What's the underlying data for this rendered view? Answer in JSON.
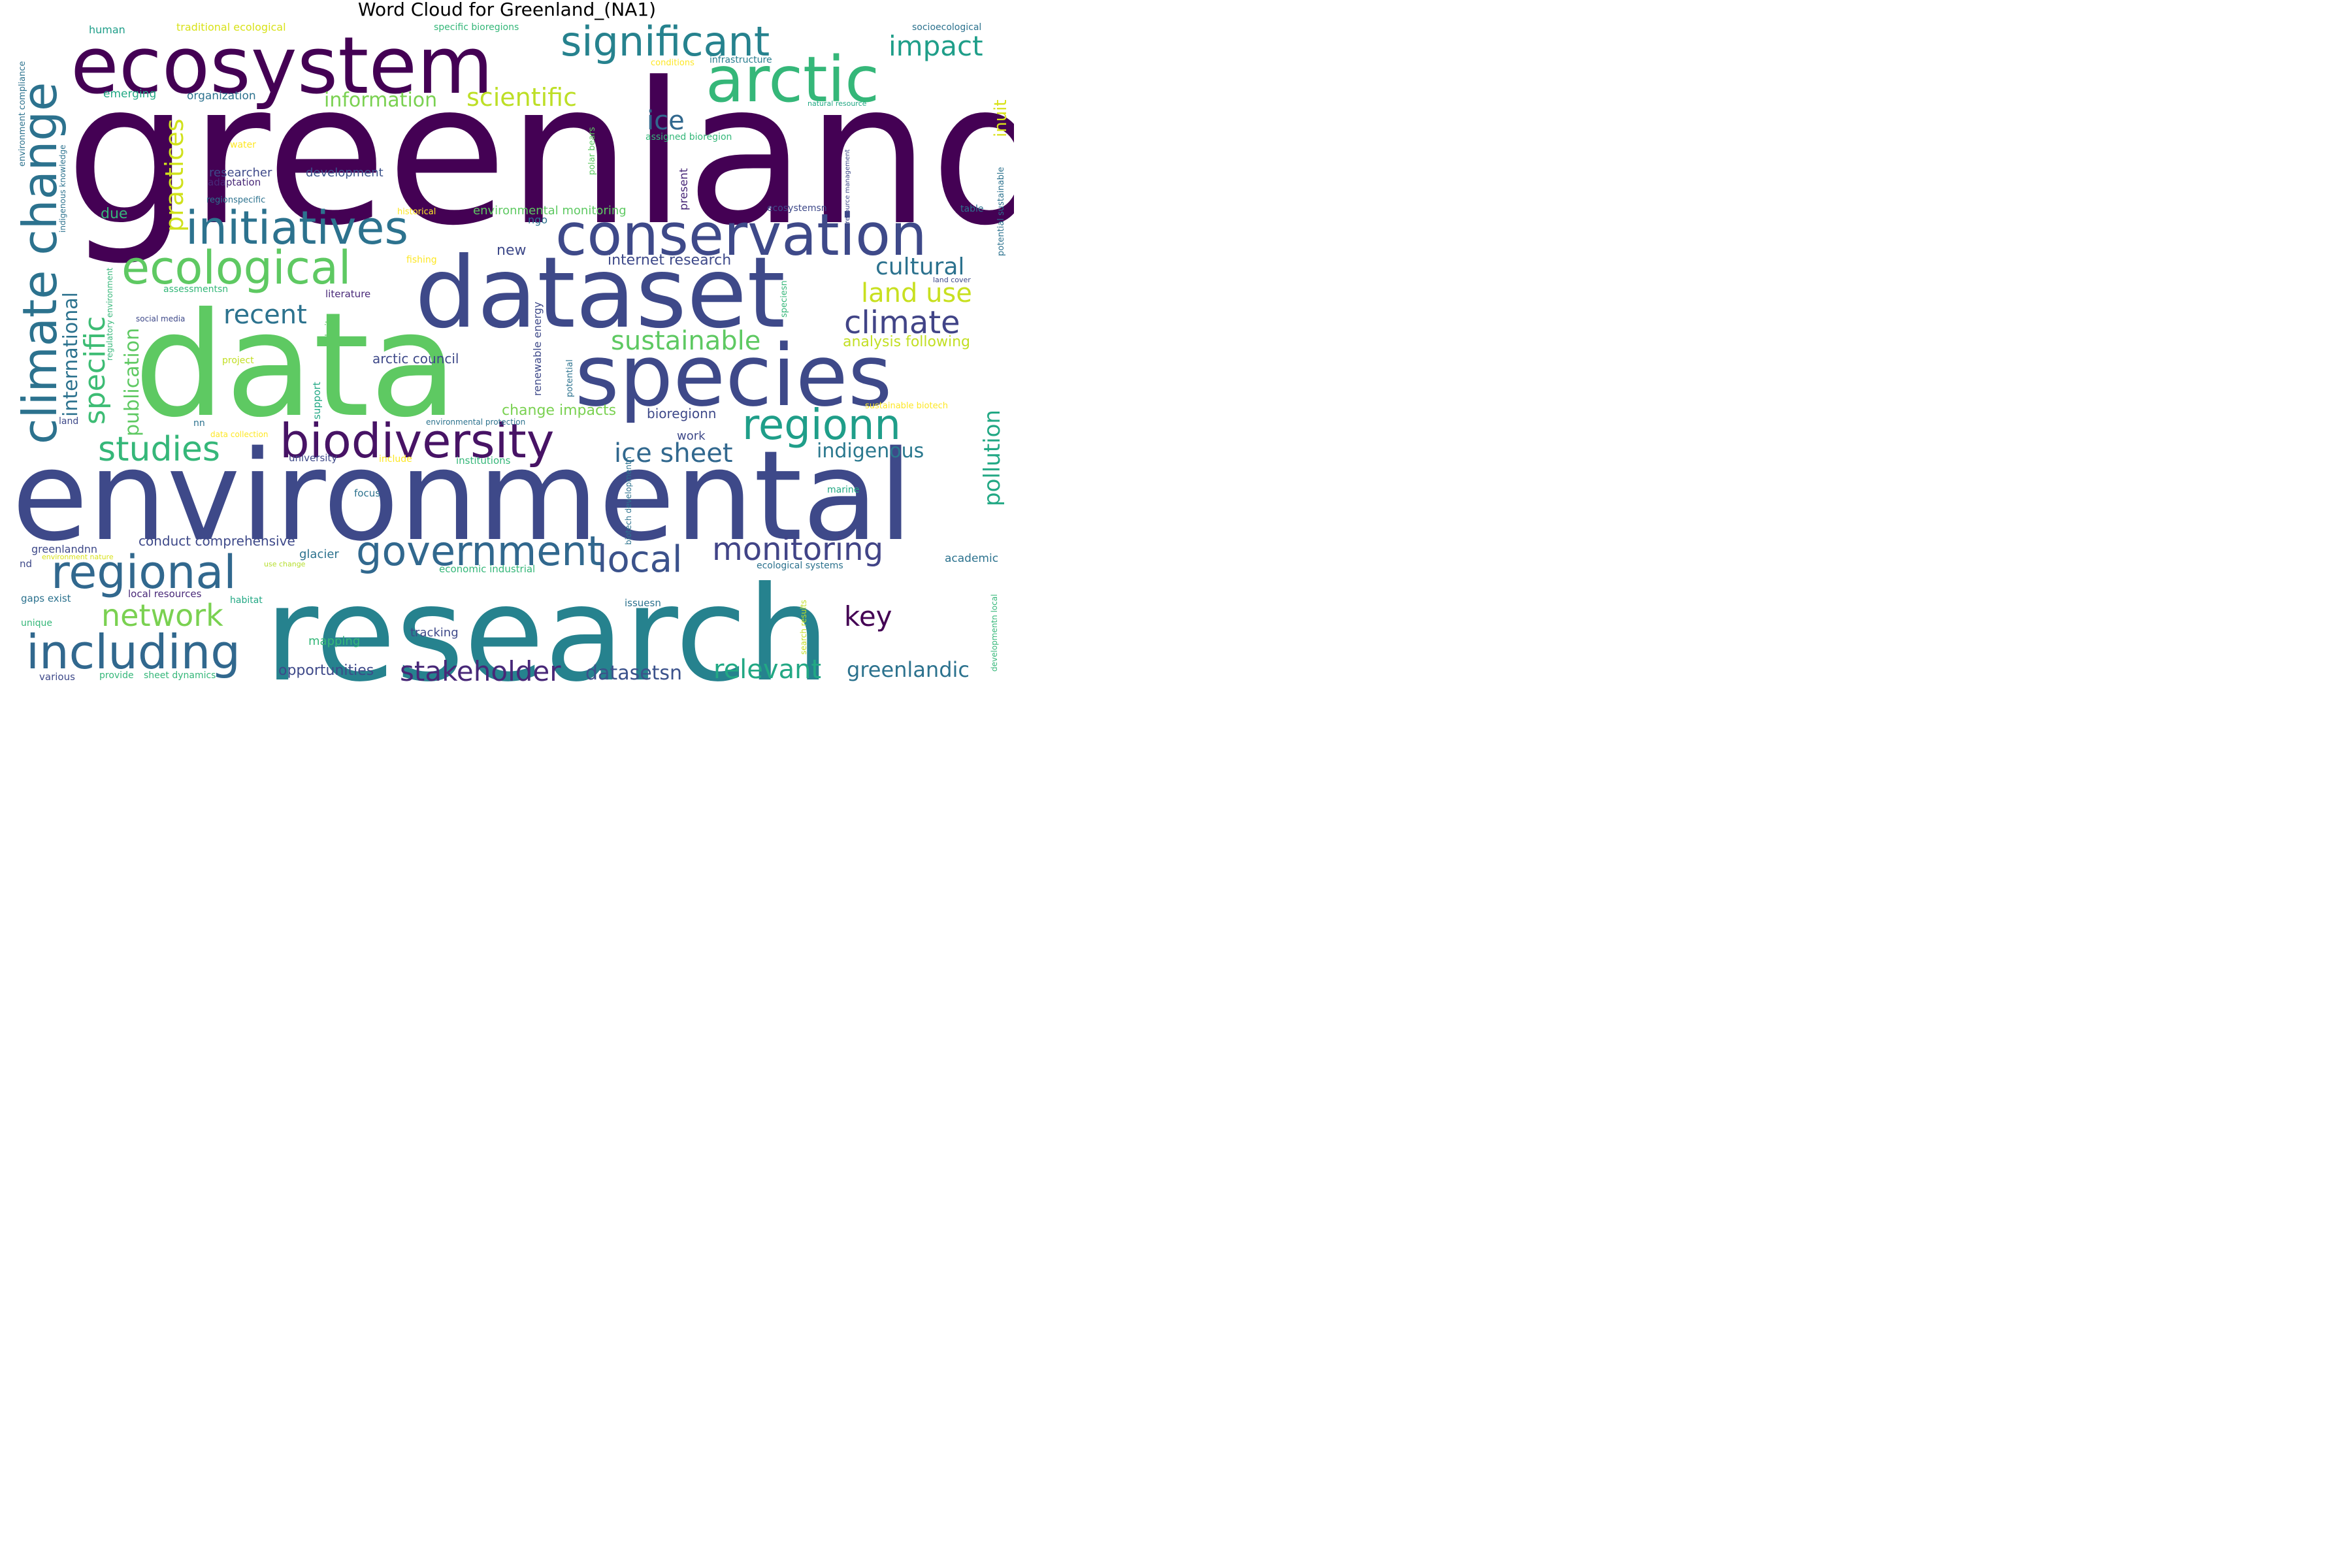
{
  "title": "Word Cloud for Greenland_(NA1)",
  "words": [
    {
      "text": "greenland",
      "color": "#440154"
    },
    {
      "text": "environmental",
      "color": "#3e4989"
    },
    {
      "text": "research",
      "color": "#26828e"
    },
    {
      "text": "data",
      "color": "#5ec962"
    },
    {
      "text": "ecosystem",
      "color": "#440154"
    },
    {
      "text": "dataset",
      "color": "#3e4989"
    },
    {
      "text": "species",
      "color": "#3e4989"
    },
    {
      "text": "conservation",
      "color": "#3e4989"
    },
    {
      "text": "arctic",
      "color": "#35b779"
    },
    {
      "text": "significant",
      "color": "#26828e"
    },
    {
      "text": "biodiversity",
      "color": "#471365"
    },
    {
      "text": "initiatives",
      "color": "#2c728e"
    },
    {
      "text": "ecological",
      "color": "#5ec962"
    },
    {
      "text": "climate change",
      "color": "#2c728e"
    },
    {
      "text": "regional",
      "color": "#31688e"
    },
    {
      "text": "including",
      "color": "#31688e"
    },
    {
      "text": "government",
      "color": "#31688e"
    },
    {
      "text": "regionn",
      "color": "#1f9e89"
    },
    {
      "text": "monitoring",
      "color": "#414487"
    },
    {
      "text": "local",
      "color": "#3b528b"
    },
    {
      "text": "impact",
      "color": "#1f9e89"
    },
    {
      "text": "climate",
      "color": "#414487"
    },
    {
      "text": "cultural",
      "color": "#2c728e"
    },
    {
      "text": "land use",
      "color": "#c8e020"
    },
    {
      "text": "sustainable",
      "color": "#5ec962"
    },
    {
      "text": "ice sheet",
      "color": "#31688e"
    },
    {
      "text": "studies",
      "color": "#35b779"
    },
    {
      "text": "network",
      "color": "#7ad151"
    },
    {
      "text": "stakeholder",
      "color": "#482878"
    },
    {
      "text": "relevant",
      "color": "#22a884"
    },
    {
      "text": "greenlandic",
      "color": "#2c728e"
    },
    {
      "text": "key",
      "color": "#440154"
    },
    {
      "text": "recent",
      "color": "#2c728e"
    },
    {
      "text": "information",
      "color": "#7ad151"
    },
    {
      "text": "scientific",
      "color": "#bddf26"
    },
    {
      "text": "ice",
      "color": "#31688e"
    },
    {
      "text": "pollution",
      "color": "#22a884"
    },
    {
      "text": "specific",
      "color": "#3dbc74"
    },
    {
      "text": "practices",
      "color": "#d0e11c"
    },
    {
      "text": "international",
      "color": "#2c728e"
    },
    {
      "text": "publication",
      "color": "#5ec962"
    },
    {
      "text": "datasetsn",
      "color": "#3b528b"
    },
    {
      "text": "opportunities",
      "color": "#3e4989"
    },
    {
      "text": "indigenous",
      "color": "#2a788e"
    },
    {
      "text": "analysis following",
      "color": "#c2df23"
    },
    {
      "text": "inuit",
      "color": "#d8e219"
    },
    {
      "text": "conduct comprehensive",
      "color": "#3e4989"
    },
    {
      "text": "change impacts",
      "color": "#7ad151"
    },
    {
      "text": "bioregionn",
      "color": "#3e4989"
    },
    {
      "text": "internet research",
      "color": "#3e4989"
    },
    {
      "text": "arctic council",
      "color": "#3e4989"
    },
    {
      "text": "environmental monitoring",
      "color": "#5ec962"
    },
    {
      "text": "development",
      "color": "#3b528b"
    },
    {
      "text": "researcher",
      "color": "#3e4989"
    },
    {
      "text": "organization",
      "color": "#2c728e"
    },
    {
      "text": "emerging",
      "color": "#22a884"
    },
    {
      "text": "human",
      "color": "#1f9e89"
    },
    {
      "text": "traditional ecological",
      "color": "#d8e219"
    },
    {
      "text": "specific bioregions",
      "color": "#35b779"
    },
    {
      "text": "socioecological",
      "color": "#2c728e"
    },
    {
      "text": "conditions",
      "color": "#fde725"
    },
    {
      "text": "infrastructure",
      "color": "#287d8e"
    },
    {
      "text": "natural resource",
      "color": "#22a884"
    },
    {
      "text": "assigned bioregion",
      "color": "#35b779"
    },
    {
      "text": "water",
      "color": "#fde725"
    },
    {
      "text": "adaptation",
      "color": "#482878"
    },
    {
      "text": "regionspecific",
      "color": "#2c728e"
    },
    {
      "text": "historical",
      "color": "#fde725"
    },
    {
      "text": "ecosystemsn",
      "color": "#3e4989"
    },
    {
      "text": "table",
      "color": "#2c728e"
    },
    {
      "text": "due",
      "color": "#35b779"
    },
    {
      "text": "ngo",
      "color": "#2c728e"
    },
    {
      "text": "new",
      "color": "#3e4989"
    },
    {
      "text": "fishing",
      "color": "#fde725"
    },
    {
      "text": "land cover",
      "color": "#3e4989"
    },
    {
      "text": "assessmentsn",
      "color": "#35b779"
    },
    {
      "text": "literature",
      "color": "#482878"
    },
    {
      "text": "social media",
      "color": "#3e4989"
    },
    {
      "text": "project",
      "color": "#c2df23"
    },
    {
      "text": "website",
      "color": "#5ec962"
    },
    {
      "text": "renewable energy",
      "color": "#3e4989"
    },
    {
      "text": "potential",
      "color": "#2c728e"
    },
    {
      "text": "sustainable biotech",
      "color": "#fde725"
    },
    {
      "text": "land",
      "color": "#3e4989"
    },
    {
      "text": "nn",
      "color": "#2c728e"
    },
    {
      "text": "data collection",
      "color": "#fde725"
    },
    {
      "text": "environmental protection",
      "color": "#2c728e"
    },
    {
      "text": "work",
      "color": "#3e4989"
    },
    {
      "text": "university",
      "color": "#3e4989"
    },
    {
      "text": "include",
      "color": "#fde725"
    },
    {
      "text": "institutions",
      "color": "#35b779"
    },
    {
      "text": "focus",
      "color": "#2c728e"
    },
    {
      "text": "marine",
      "color": "#22a884"
    },
    {
      "text": "greenlandnn",
      "color": "#3e4989"
    },
    {
      "text": "environment nature",
      "color": "#d8e219"
    },
    {
      "text": "nd",
      "color": "#3e4989"
    },
    {
      "text": "use change",
      "color": "#b5de2b"
    },
    {
      "text": "glacier",
      "color": "#2c728e"
    },
    {
      "text": "economic industrial",
      "color": "#35b779"
    },
    {
      "text": "ecological systems",
      "color": "#2c728e"
    },
    {
      "text": "academic",
      "color": "#2c728e"
    },
    {
      "text": "gaps exist",
      "color": "#2c728e"
    },
    {
      "text": "local resources",
      "color": "#482878"
    },
    {
      "text": "habitat",
      "color": "#22a884"
    },
    {
      "text": "issuesn",
      "color": "#2c728e"
    },
    {
      "text": "unique",
      "color": "#35b779"
    },
    {
      "text": "tracking",
      "color": "#3e4989"
    },
    {
      "text": "mapping",
      "color": "#35b779"
    },
    {
      "text": "various",
      "color": "#3e4989"
    },
    {
      "text": "provide",
      "color": "#35b779"
    },
    {
      "text": "sheet dynamics",
      "color": "#35b779"
    },
    {
      "text": "support",
      "color": "#22a884"
    },
    {
      "text": "environment compliance",
      "color": "#2c728e"
    },
    {
      "text": "indigenous knowledge",
      "color": "#2c728e"
    },
    {
      "text": "regulatory environment",
      "color": "#35b779"
    },
    {
      "text": "polar bears",
      "color": "#5ec962"
    },
    {
      "text": "present",
      "color": "#482878"
    },
    {
      "text": "resource management",
      "color": "#3e4989"
    },
    {
      "text": "potential sustainable",
      "color": "#2c728e"
    },
    {
      "text": "speciesn",
      "color": "#35b779"
    },
    {
      "text": "biotech developmentn",
      "color": "#2c728e"
    },
    {
      "text": "search results",
      "color": "#c2df23"
    },
    {
      "text": "developmentn local",
      "color": "#35b779"
    }
  ]
}
